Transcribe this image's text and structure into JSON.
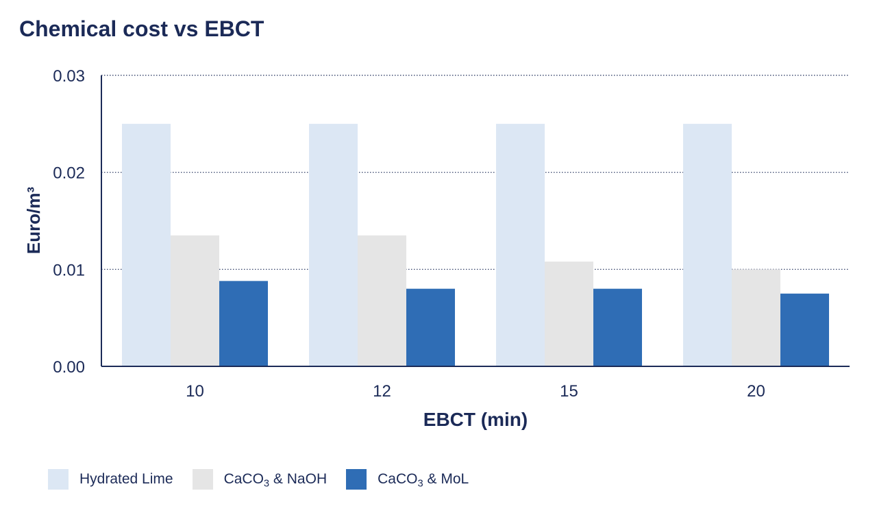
{
  "chart_data": {
    "type": "bar",
    "title": "Chemical cost vs EBCT",
    "xlabel": "EBCT (min)",
    "ylabel": "Euro/m³",
    "categories": [
      "10",
      "12",
      "15",
      "20"
    ],
    "ylim": [
      0,
      0.03
    ],
    "yticks": [
      "0.00",
      "0.01",
      "0.02",
      "0.03"
    ],
    "grid": "horizontal-dotted",
    "legend_position": "bottom-left",
    "series": [
      {
        "name": "Hydrated Lime",
        "color": "#dce7f4",
        "values": [
          0.025,
          0.025,
          0.025,
          0.025
        ]
      },
      {
        "name": "CaCO3 & NaOH",
        "name_parts": {
          "pre": "CaCO",
          "sub": "3",
          "post": " & NaOH"
        },
        "color": "#e5e5e5",
        "values": [
          0.0135,
          0.0135,
          0.0108,
          0.01
        ]
      },
      {
        "name": "CaCO3 & MoL",
        "name_parts": {
          "pre": "CaCO",
          "sub": "3",
          "post": " & MoL"
        },
        "color": "#2f6db5",
        "values": [
          0.0088,
          0.008,
          0.008,
          0.0075
        ]
      }
    ]
  },
  "colors": {
    "text": "#1b2a57",
    "axis": "#1b2a57",
    "grid": "#1b2a57"
  }
}
